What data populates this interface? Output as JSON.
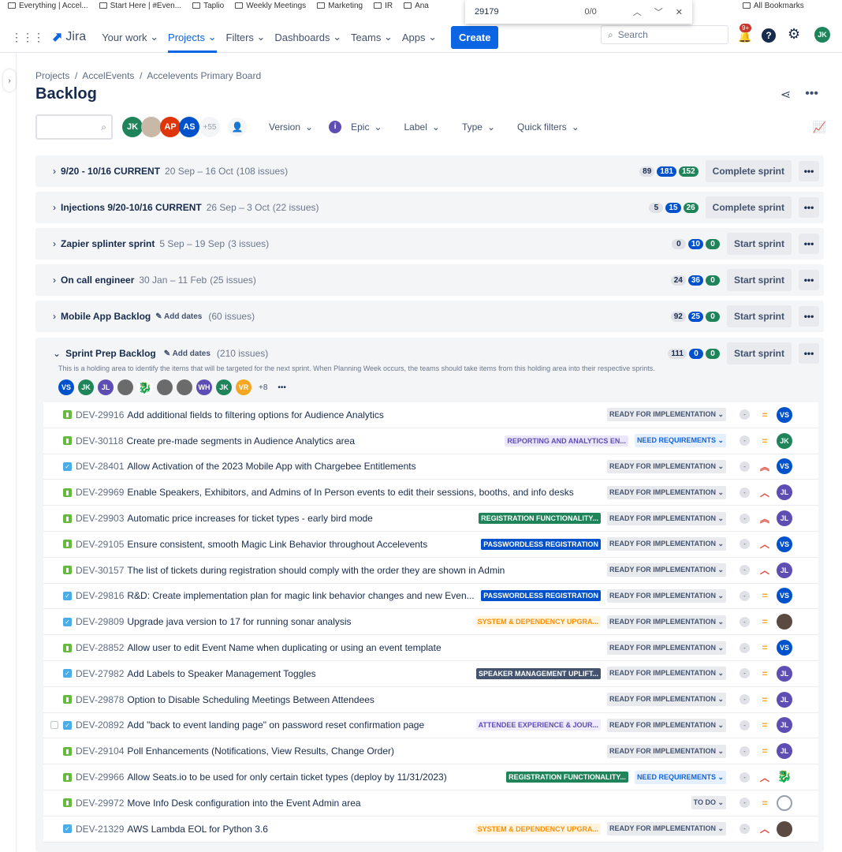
{
  "bookmarks": [
    "Everything | Accel...",
    "Start Here | #Even...",
    "Taplio",
    "Weekly Meetings",
    "Marketing",
    "IR",
    "Ana",
    "IR",
    "All Bookmarks"
  ],
  "find": {
    "query": "29179",
    "count": "0/0"
  },
  "nav": {
    "logo": "Jira",
    "items": [
      "Your work",
      "Projects",
      "Filters",
      "Dashboards",
      "Teams",
      "Apps"
    ],
    "create": "Create",
    "search_placeholder": "Search",
    "notif_badge": "9+",
    "user": "JK"
  },
  "breadcrumb": [
    "Projects",
    "AccelEvents",
    "Accelevents Primary Board"
  ],
  "title": "Backlog",
  "filters": {
    "avatars": [
      "JK",
      "AP",
      "AS"
    ],
    "more": "+55",
    "items": [
      "Version",
      "Epic",
      "Label",
      "Type",
      "Quick filters"
    ]
  },
  "sprints": [
    {
      "name": "9/20 - 10/16 CURRENT",
      "dates": "20 Sep – 16 Oct",
      "issues": "(108 issues)",
      "counts": [
        "89",
        "181",
        "152"
      ],
      "action": "Complete sprint"
    },
    {
      "name": "Injections 9/20-10/16 CURRENT",
      "dates": "26 Sep – 3 Oct",
      "issues": "(22 issues)",
      "counts": [
        "5",
        "15",
        "26"
      ],
      "action": "Complete sprint"
    },
    {
      "name": "Zapier splinter sprint",
      "dates": "5 Sep – 19 Sep",
      "issues": "(3 issues)",
      "counts": [
        "0",
        "10",
        "0"
      ],
      "action": "Start sprint"
    },
    {
      "name": "On call engineer",
      "dates": "30 Jan – 11 Feb",
      "issues": "(25 issues)",
      "counts": [
        "24",
        "36",
        "0"
      ],
      "action": "Start sprint"
    },
    {
      "name": "Mobile App Backlog",
      "dates": "Add dates",
      "issues": "(60 issues)",
      "counts": [
        "92",
        "25",
        "0"
      ],
      "action": "Start sprint"
    }
  ],
  "prep": {
    "name": "Sprint Prep Backlog",
    "dates": "Add dates",
    "issues": "(210 issues)",
    "counts": [
      "111",
      "0",
      "0"
    ],
    "action": "Start sprint",
    "description": "This is a holding area to identify the items that will be targeted for the next sprint. When Planning Week occurs, the teams should take items from this holding area into their respective sprints.",
    "avatars": [
      "VS",
      "JK",
      "JL",
      "",
      "",
      "",
      "",
      "WH",
      "JK",
      "VR"
    ],
    "more": "+8"
  },
  "colors": {
    "VS": "#0052cc",
    "JK": "#1f845a",
    "JL": "#5e4db2",
    "WH": "#5e4db2",
    "VR": "#f5a623",
    "AP": "#de350b",
    "AS": "#0052cc",
    "photo": "#6b6b6b",
    "dragon": "#d0021b",
    "none": "#c1c7d0"
  },
  "issues": [
    {
      "key": "DEV-29916",
      "summary": "Add additional fields to filtering options for Audience Analytics",
      "type": "story",
      "epic": "",
      "epic_style": "",
      "status": "READY FOR IMPLEMENTATION",
      "priority": "medium",
      "assignee": "VS"
    },
    {
      "key": "DEV-30118",
      "summary": "Create pre-made segments in Audience Analytics area",
      "type": "story",
      "epic": "REPORTING AND ANALYTICS EN...",
      "epic_style": "rep",
      "status": "NEED REQUIREMENTS",
      "priority": "medium",
      "assignee": "JK"
    },
    {
      "key": "DEV-28401",
      "summary": "Allow Activation of the 2023 Mobile App with Chargebee Entitlements",
      "type": "task",
      "epic": "",
      "epic_style": "",
      "status": "READY FOR IMPLEMENTATION",
      "priority": "highest",
      "assignee": "VS"
    },
    {
      "key": "DEV-29969",
      "summary": "Enable Speakers, Exhibitors, and Admins of In Person events to edit their sessions, booths, and info desks",
      "type": "story",
      "epic": "",
      "epic_style": "",
      "status": "READY FOR IMPLEMENTATION",
      "priority": "high",
      "assignee": "JL"
    },
    {
      "key": "DEV-29903",
      "summary": "Automatic price increases for ticket types - early bird mode",
      "type": "story",
      "epic": "REGISTRATION FUNCTIONALITY...",
      "epic_style": "reg",
      "status": "READY FOR IMPLEMENTATION",
      "priority": "highest",
      "assignee": "JL"
    },
    {
      "key": "DEV-29105",
      "summary": "Ensure consistent, smooth Magic Link Behavior throughout Accelevents",
      "type": "story",
      "epic": "PASSWORDLESS REGISTRATION",
      "epic_style": "pw",
      "status": "READY FOR IMPLEMENTATION",
      "priority": "high",
      "assignee": "VS"
    },
    {
      "key": "DEV-30157",
      "summary": "The list of tickets during registration should comply with the order they are shown in Admin",
      "type": "story",
      "epic": "",
      "epic_style": "",
      "status": "READY FOR IMPLEMENTATION",
      "priority": "high",
      "assignee": "JL"
    },
    {
      "key": "DEV-29816",
      "summary": "R&D: Create implementation plan for magic link behavior changes and new Even...",
      "type": "task",
      "epic": "PASSWORDLESS REGISTRATION",
      "epic_style": "pw",
      "status": "READY FOR IMPLEMENTATION",
      "priority": "medium",
      "assignee": "VS"
    },
    {
      "key": "DEV-29809",
      "summary": "Upgrade java version to 17 for running sonar analysis",
      "type": "task",
      "epic": "SYSTEM & DEPENDENCY UPGRA...",
      "epic_style": "sys",
      "status": "READY FOR IMPLEMENTATION",
      "priority": "medium",
      "assignee": "photo"
    },
    {
      "key": "DEV-28852",
      "summary": "Allow user to edit Event Name when duplicating or using an event template",
      "type": "story",
      "epic": "",
      "epic_style": "",
      "status": "READY FOR IMPLEMENTATION",
      "priority": "medium",
      "assignee": "VS"
    },
    {
      "key": "DEV-27982",
      "summary": "Add Labels to Speaker Management Toggles",
      "type": "task",
      "epic": "SPEAKER MANAGEMENT UPLIFT...",
      "epic_style": "spk",
      "status": "READY FOR IMPLEMENTATION",
      "priority": "medium",
      "assignee": "JL"
    },
    {
      "key": "DEV-29878",
      "summary": "Option to Disable Scheduling Meetings Between Attendees",
      "type": "story",
      "epic": "",
      "epic_style": "",
      "status": "READY FOR IMPLEMENTATION",
      "priority": "medium",
      "assignee": "JL"
    },
    {
      "key": "DEV-20892",
      "summary": "Add \"back to event landing page\" on password reset confirmation page",
      "type": "task",
      "epic": "ATTENDEE EXPERIENCE & JOUR...",
      "epic_style": "att",
      "status": "READY FOR IMPLEMENTATION",
      "priority": "medium",
      "assignee": "JL"
    },
    {
      "key": "DEV-29104",
      "summary": "Poll Enhancements (Notifications, View Results, Change Order)",
      "type": "story",
      "epic": "",
      "epic_style": "",
      "status": "READY FOR IMPLEMENTATION",
      "priority": "medium",
      "assignee": "JL"
    },
    {
      "key": "DEV-29966",
      "summary": "Allow Seats.io to be used for only certain ticket types (deploy by 11/31/2023)",
      "type": "story",
      "epic": "REGISTRATION FUNCTIONALITY...",
      "epic_style": "reg",
      "status": "NEED REQUIREMENTS",
      "priority": "high",
      "assignee": "dragon"
    },
    {
      "key": "DEV-29972",
      "summary": "Move Info Desk configuration into the Event Admin area",
      "type": "story",
      "epic": "",
      "epic_style": "",
      "status": "TO DO",
      "priority": "medium",
      "assignee": "none"
    },
    {
      "key": "DEV-21329",
      "summary": "AWS Lambda EOL for Python 3.6",
      "type": "task",
      "epic": "SYSTEM & DEPENDENCY UPGRA...",
      "epic_style": "sys",
      "status": "READY FOR IMPLEMENTATION",
      "priority": "high",
      "assignee": "photo"
    }
  ]
}
